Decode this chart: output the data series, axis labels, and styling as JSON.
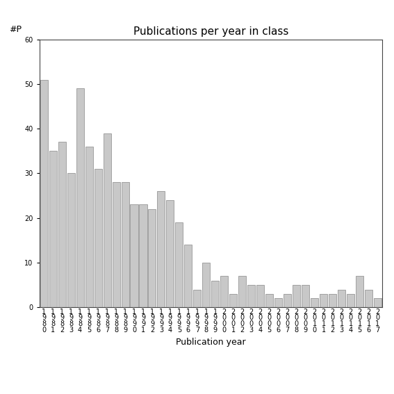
{
  "title": "Publications per year in class",
  "xlabel": "Publication year",
  "ylabel": "#P",
  "ylim": [
    0,
    60
  ],
  "yticks": [
    0,
    10,
    20,
    30,
    40,
    50,
    60
  ],
  "bar_color": "#c8c8c8",
  "bar_edgecolor": "#888888",
  "categories": [
    "1\n9\n8\n0",
    "1\n9\n8\n1",
    "1\n9\n8\n2",
    "1\n9\n8\n3",
    "1\n9\n8\n4",
    "1\n9\n8\n5",
    "1\n9\n8\n6",
    "1\n9\n8\n7",
    "1\n9\n8\n8",
    "1\n9\n8\n9",
    "1\n9\n9\n0",
    "1\n9\n9\n1",
    "1\n9\n9\n2",
    "1\n9\n9\n3",
    "1\n9\n9\n4",
    "1\n9\n9\n5",
    "1\n9\n9\n6",
    "1\n9\n9\n7",
    "1\n9\n9\n8",
    "1\n9\n9\n9",
    "2\n0\n0\n0",
    "2\n0\n0\n1",
    "2\n0\n0\n2",
    "2\n0\n0\n3",
    "2\n0\n0\n4",
    "2\n0\n0\n5",
    "2\n0\n0\n6",
    "2\n0\n0\n7",
    "2\n0\n0\n8",
    "2\n0\n0\n9",
    "2\n0\n1\n0",
    "2\n0\n1\n1",
    "2\n0\n1\n2",
    "2\n0\n1\n3",
    "2\n0\n1\n4",
    "2\n0\n1\n5",
    "2\n0\n1\n6",
    "2\n0\n1\n7"
  ],
  "values": [
    51,
    35,
    37,
    30,
    49,
    36,
    31,
    39,
    28,
    28,
    23,
    23,
    22,
    26,
    24,
    19,
    14,
    4,
    10,
    6,
    7,
    3,
    7,
    5,
    5,
    3,
    2,
    3,
    5,
    5,
    2,
    3,
    3,
    4,
    3,
    7,
    4,
    2
  ],
  "background_color": "#ffffff",
  "title_fontsize": 11,
  "axis_label_fontsize": 9,
  "tick_fontsize": 7,
  "ylabel_fontsize": 9
}
